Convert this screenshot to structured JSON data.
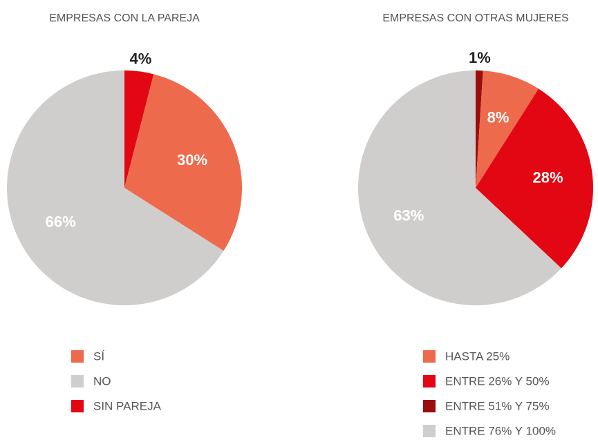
{
  "chart_data": [
    {
      "type": "pie",
      "title": "EMPRESAS CON LA PAREJA",
      "categories": [
        "SIN PAREJA",
        "SÍ",
        "NO"
      ],
      "values": [
        4,
        30,
        66
      ],
      "value_labels": [
        "4%",
        "30%",
        "66%"
      ],
      "colors": [
        "#e30613",
        "#ee6a4c",
        "#d0cdcd"
      ],
      "legend": [
        "SÍ",
        "NO",
        "SIN PAREJA"
      ],
      "legend_colors": [
        "#ee6a4c",
        "#d0cdcd",
        "#e30613"
      ]
    },
    {
      "type": "pie",
      "title": "EMPRESAS CON OTRAS MUJERES",
      "categories": [
        "ENTRE 51% Y 75%",
        "HASTA 25%",
        "ENTRE 26% Y 50%",
        "ENTRE 76% Y 100%"
      ],
      "values": [
        1,
        8,
        28,
        63
      ],
      "value_labels": [
        "1%",
        "8%",
        "28%",
        "63%"
      ],
      "colors": [
        "#9b0d0d",
        "#ee6a4c",
        "#e30613",
        "#d0cdcd"
      ],
      "legend": [
        "HASTA 25%",
        "ENTRE 26% Y 50%",
        "ENTRE 51% Y 75%",
        "ENTRE 76% Y 100%"
      ],
      "legend_colors": [
        "#ee6a4c",
        "#e30613",
        "#9b0d0d",
        "#d0cdcd"
      ]
    }
  ]
}
